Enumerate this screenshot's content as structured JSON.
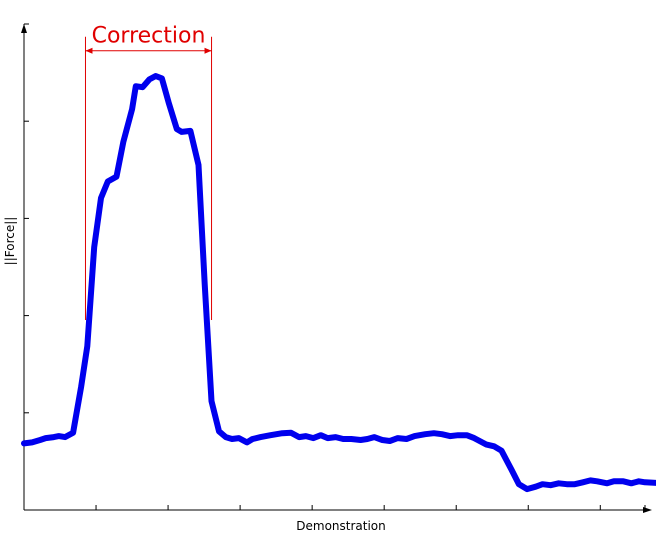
{
  "chart_data": {
    "type": "line",
    "title": "",
    "xlabel": "Demonstration",
    "ylabel": "||Force||",
    "xlim": [
      0,
      100
    ],
    "ylim": [
      0,
      100
    ],
    "grid": false,
    "tick_labels_shown": false,
    "x_ticks": [
      0,
      11.6,
      23.2,
      34.8,
      46.4,
      58.0,
      69.6,
      81.2,
      92.8,
      100
    ],
    "y_ticks": [
      0,
      20,
      40,
      60,
      80,
      100
    ],
    "series": [
      {
        "name": "",
        "color": "#0000ee",
        "points": [
          [
            0.0,
            13.7
          ],
          [
            1.3,
            13.9
          ],
          [
            2.6,
            14.4
          ],
          [
            3.5,
            14.8
          ],
          [
            4.8,
            15.0
          ],
          [
            5.6,
            15.2
          ],
          [
            6.6,
            15.0
          ],
          [
            7.9,
            15.9
          ],
          [
            9.2,
            25.3
          ],
          [
            10.2,
            33.7
          ],
          [
            11.3,
            54.1
          ],
          [
            12.4,
            64.2
          ],
          [
            13.5,
            67.6
          ],
          [
            14.9,
            68.6
          ],
          [
            16.0,
            75.8
          ],
          [
            17.4,
            82.5
          ],
          [
            18.0,
            87.2
          ],
          [
            19.1,
            87.0
          ],
          [
            20.2,
            88.6
          ],
          [
            21.2,
            89.3
          ],
          [
            22.2,
            88.8
          ],
          [
            23.3,
            83.8
          ],
          [
            24.6,
            78.4
          ],
          [
            25.4,
            77.8
          ],
          [
            26.8,
            78.0
          ],
          [
            28.1,
            71.0
          ],
          [
            29.1,
            46.5
          ],
          [
            30.2,
            22.4
          ],
          [
            31.4,
            16.2
          ],
          [
            32.5,
            15.0
          ],
          [
            33.5,
            14.6
          ],
          [
            34.6,
            14.8
          ],
          [
            35.9,
            13.9
          ],
          [
            36.8,
            14.6
          ],
          [
            38.1,
            15.0
          ],
          [
            39.7,
            15.4
          ],
          [
            41.6,
            15.8
          ],
          [
            43.0,
            15.9
          ],
          [
            44.3,
            15.0
          ],
          [
            45.4,
            15.2
          ],
          [
            46.6,
            14.8
          ],
          [
            47.8,
            15.4
          ],
          [
            48.9,
            14.8
          ],
          [
            50.2,
            15.0
          ],
          [
            51.4,
            14.6
          ],
          [
            52.7,
            14.6
          ],
          [
            54.2,
            14.4
          ],
          [
            55.3,
            14.6
          ],
          [
            56.4,
            15.0
          ],
          [
            57.7,
            14.4
          ],
          [
            58.9,
            14.2
          ],
          [
            60.2,
            14.8
          ],
          [
            61.6,
            14.6
          ],
          [
            62.9,
            15.2
          ],
          [
            64.6,
            15.6
          ],
          [
            66.0,
            15.8
          ],
          [
            67.3,
            15.6
          ],
          [
            68.6,
            15.2
          ],
          [
            69.9,
            15.4
          ],
          [
            71.3,
            15.4
          ],
          [
            72.5,
            14.8
          ],
          [
            74.4,
            13.5
          ],
          [
            75.7,
            13.1
          ],
          [
            76.9,
            12.2
          ],
          [
            78.5,
            8.3
          ],
          [
            79.7,
            5.3
          ],
          [
            81.0,
            4.3
          ],
          [
            82.4,
            4.8
          ],
          [
            83.5,
            5.3
          ],
          [
            84.8,
            5.1
          ],
          [
            86.1,
            5.5
          ],
          [
            87.4,
            5.3
          ],
          [
            88.7,
            5.3
          ],
          [
            90.0,
            5.7
          ],
          [
            91.2,
            6.1
          ],
          [
            92.3,
            5.9
          ],
          [
            93.9,
            5.5
          ],
          [
            95.0,
            5.9
          ],
          [
            96.5,
            5.9
          ],
          [
            97.8,
            5.5
          ],
          [
            99.0,
            5.9
          ],
          [
            100.0,
            5.7
          ],
          [
            103.0,
            5.5
          ],
          [
            105.0,
            5.5
          ]
        ]
      }
    ],
    "annotations": [
      {
        "text": "Correction",
        "color": "#e00000",
        "x_start": 9.9,
        "x_end": 30.2,
        "y_bracket": 94.5
      }
    ]
  }
}
